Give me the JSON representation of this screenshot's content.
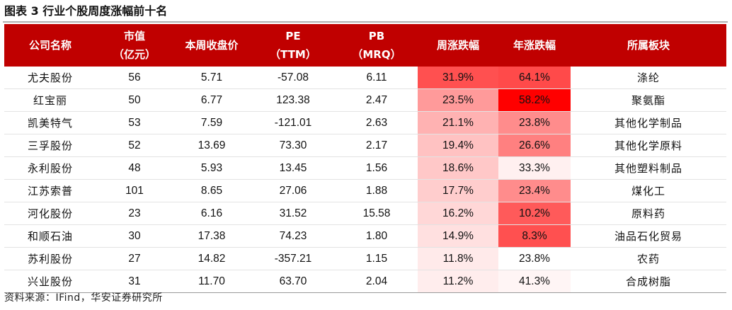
{
  "title": "图表 3 行业个股周度涨幅前十名",
  "colors": {
    "header_bg": "#c00000",
    "header_text": "#ffffff",
    "heat_max": "#ff0000",
    "heat_min": "#ffffff"
  },
  "header": {
    "company": [
      "公司名称"
    ],
    "mktcap": [
      "市值",
      "（亿元）"
    ],
    "close": [
      "本周收盘价"
    ],
    "pe": [
      "PE",
      "（TTM）"
    ],
    "pb": [
      "PB",
      "（MRQ）"
    ],
    "weekly": [
      "周涨跌幅"
    ],
    "yearly": [
      "年涨跌幅"
    ],
    "sector": [
      "所属板块"
    ]
  },
  "rows": [
    {
      "company": "尤夫股份",
      "mktcap": "56",
      "close": "5.71",
      "pe": "-57.08",
      "pb": "6.11",
      "weekly": "31.9%",
      "yearly": "64.1%",
      "sector": "涤纶",
      "weekly_v": 31.9,
      "yearly_v": 64.1
    },
    {
      "company": "红宝丽",
      "mktcap": "50",
      "close": "6.77",
      "pe": "123.38",
      "pb": "2.47",
      "weekly": "23.5%",
      "yearly": "58.2%",
      "sector": "聚氨酯",
      "weekly_v": 23.5,
      "yearly_v": 58.2
    },
    {
      "company": "凯美特气",
      "mktcap": "53",
      "close": "7.59",
      "pe": "-121.01",
      "pb": "2.63",
      "weekly": "21.1%",
      "yearly": "23.8%",
      "sector": "其他化学制品",
      "weekly_v": 21.1,
      "yearly_v": 23.8
    },
    {
      "company": "三孚股份",
      "mktcap": "52",
      "close": "13.69",
      "pe": "73.30",
      "pb": "2.17",
      "weekly": "19.4%",
      "yearly": "26.6%",
      "sector": "其他化学原料",
      "weekly_v": 19.4,
      "yearly_v": 26.6
    },
    {
      "company": "永利股份",
      "mktcap": "48",
      "close": "5.93",
      "pe": "13.45",
      "pb": "1.56",
      "weekly": "18.6%",
      "yearly": "33.3%",
      "sector": "其他塑料制品",
      "weekly_v": 18.6,
      "yearly_v": 33.3
    },
    {
      "company": "江苏索普",
      "mktcap": "101",
      "close": "8.65",
      "pe": "27.06",
      "pb": "1.88",
      "weekly": "17.7%",
      "yearly": "23.4%",
      "sector": "煤化工",
      "weekly_v": 17.7,
      "yearly_v": 23.4
    },
    {
      "company": "河化股份",
      "mktcap": "23",
      "close": "6.16",
      "pe": "31.52",
      "pb": "15.58",
      "weekly": "16.2%",
      "yearly": "10.2%",
      "sector": "原料药",
      "weekly_v": 16.2,
      "yearly_v": 10.2
    },
    {
      "company": "和顺石油",
      "mktcap": "30",
      "close": "17.38",
      "pe": "74.23",
      "pb": "1.80",
      "weekly": "14.9%",
      "yearly": "8.3%",
      "sector": "油品石化贸易",
      "weekly_v": 14.9,
      "yearly_v": 8.3
    },
    {
      "company": "苏利股份",
      "mktcap": "27",
      "close": "14.82",
      "pe": "-357.21",
      "pb": "1.15",
      "weekly": "11.8%",
      "yearly": "23.8%",
      "sector": "农药",
      "weekly_v": 11.8,
      "yearly_v": 23.8
    },
    {
      "company": "兴业股份",
      "mktcap": "31",
      "close": "11.70",
      "pe": "63.70",
      "pb": "2.04",
      "weekly": "11.2%",
      "yearly": "41.3%",
      "sector": "合成树脂",
      "weekly_v": 11.2,
      "yearly_v": 41.3
    }
  ],
  "source": "资料来源：IFind，华安证券研究所"
}
